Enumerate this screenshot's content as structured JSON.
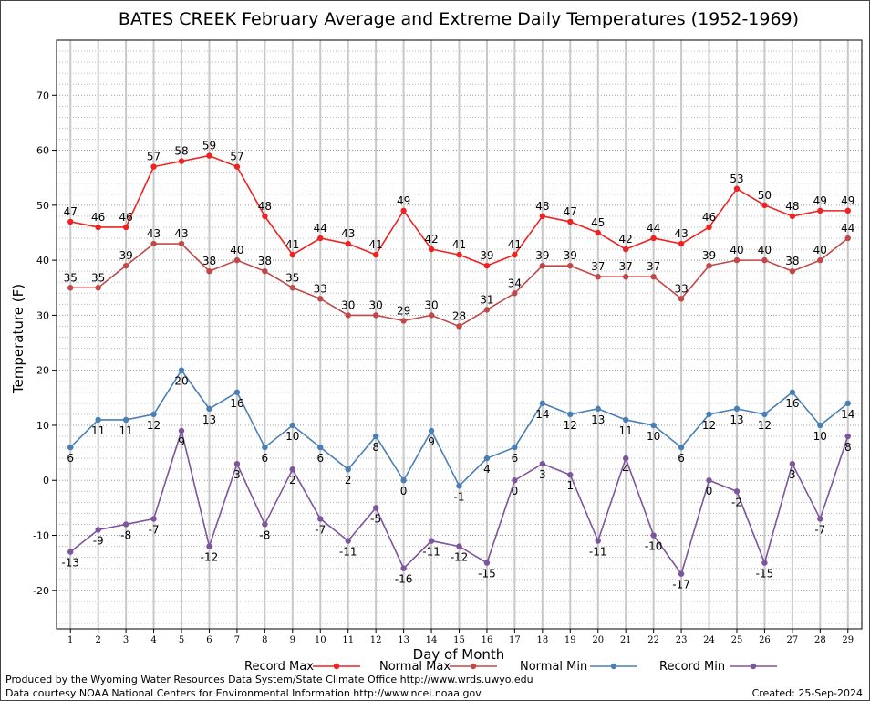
{
  "chart_data": {
    "type": "line",
    "title": "BATES CREEK February Average and Extreme Daily Temperatures (1952-1969)",
    "xlabel": "Day of Month",
    "ylabel": "Temperature (F)",
    "x": [
      1,
      2,
      3,
      4,
      5,
      6,
      7,
      8,
      9,
      10,
      11,
      12,
      13,
      14,
      15,
      16,
      17,
      18,
      19,
      20,
      21,
      22,
      23,
      24,
      25,
      26,
      27,
      28,
      29
    ],
    "xlim": [
      0.5,
      29.5
    ],
    "ylim": [
      -27,
      80
    ],
    "yticks": [
      -20,
      -10,
      0,
      10,
      20,
      30,
      40,
      50,
      60,
      70
    ],
    "grid": true,
    "legend_position": "bottom",
    "series": [
      {
        "name": "Record Max",
        "color": "#ee2222",
        "values": [
          47,
          46,
          46,
          57,
          58,
          59,
          57,
          48,
          41,
          44,
          43,
          41,
          49,
          42,
          41,
          39,
          41,
          48,
          47,
          45,
          42,
          44,
          43,
          46,
          53,
          50,
          48,
          49,
          49
        ]
      },
      {
        "name": "Normal Max",
        "color": "#c04848",
        "values": [
          35,
          35,
          39,
          43,
          43,
          38,
          40,
          38,
          35,
          33,
          30,
          30,
          29,
          30,
          28,
          31,
          34,
          39,
          39,
          37,
          37,
          37,
          33,
          39,
          40,
          40,
          38,
          40,
          44
        ]
      },
      {
        "name": "Normal Min",
        "color": "#4a7fb5",
        "values": [
          6,
          11,
          11,
          12,
          20,
          13,
          16,
          6,
          10,
          6,
          2,
          8,
          0,
          9,
          -1,
          4,
          6,
          14,
          12,
          13,
          11,
          10,
          6,
          12,
          13,
          12,
          16,
          10,
          14
        ]
      },
      {
        "name": "Record Min",
        "color": "#7d559c",
        "values": [
          -13,
          -9,
          -8,
          -7,
          9,
          -12,
          3,
          -8,
          2,
          -7,
          -11,
          -5,
          -16,
          -11,
          -12,
          -15,
          0,
          3,
          1,
          -11,
          4,
          -10,
          -17,
          0,
          -2,
          -15,
          3,
          -7,
          8
        ]
      }
    ]
  },
  "footer": {
    "credit1": "Produced by the Wyoming Water Resources Data System/State Climate Office http://www.wrds.uwyo.edu",
    "credit2": "Data courtesy NOAA National Centers for Environmental Information http://www.ncei.noaa.gov",
    "created": "Created:  25-Sep-2024"
  }
}
